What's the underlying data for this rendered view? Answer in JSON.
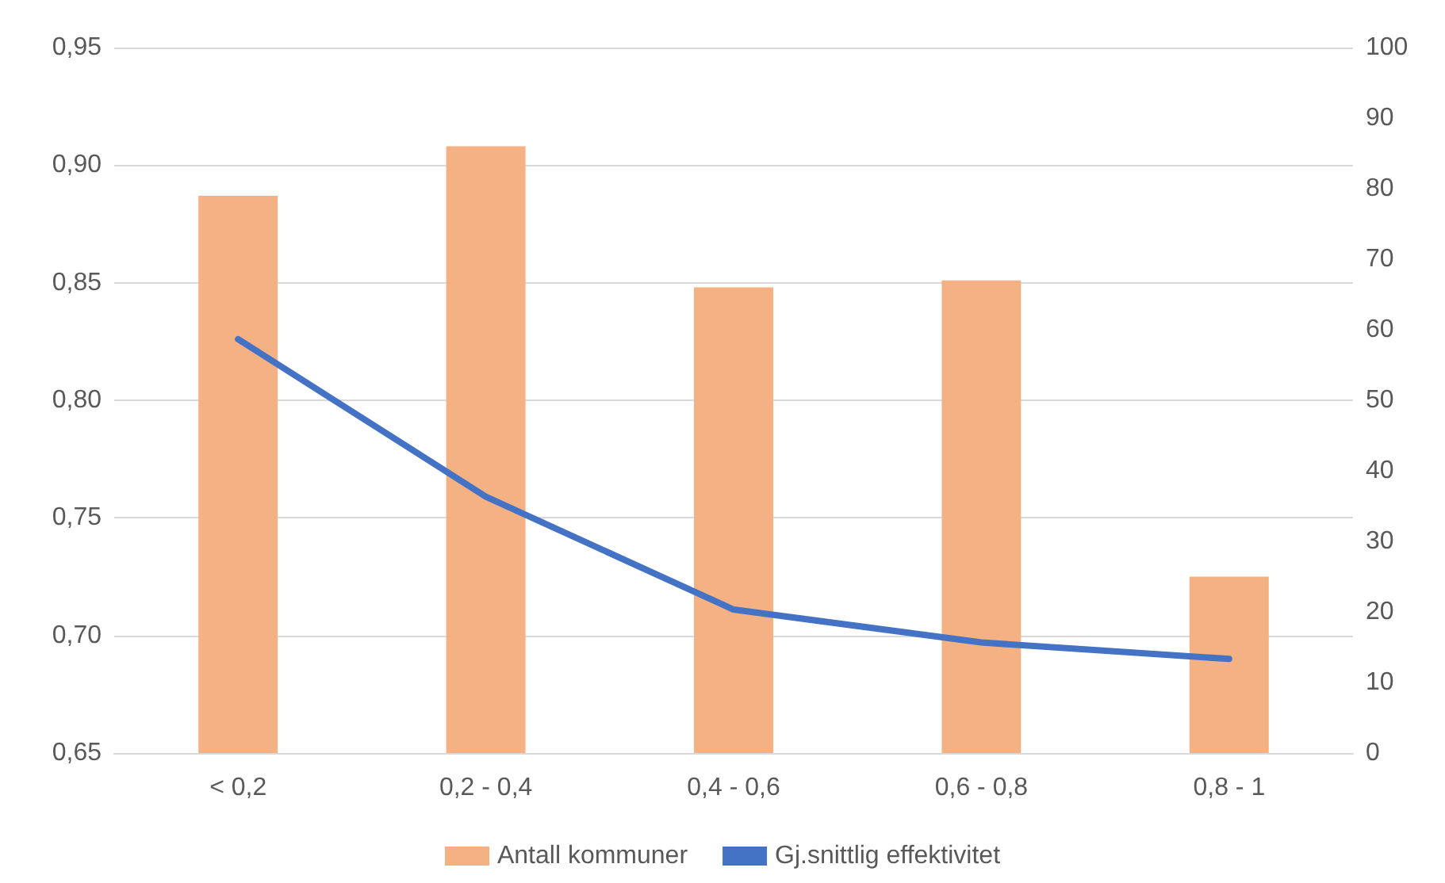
{
  "chart_data": {
    "type": "bar",
    "categories": [
      "< 0,2",
      "0,2 - 0,4",
      "0,4 - 0,6",
      "0,6 - 0,8",
      "0,8 - 1"
    ],
    "series": [
      {
        "name": "Antall kommuner",
        "axis": "y2",
        "color": "#f4b183",
        "values": [
          79,
          86,
          66,
          67,
          25
        ]
      },
      {
        "name": "Gj.snittlig effektivitet",
        "type": "line",
        "axis": "y",
        "color": "#4472c4",
        "values": [
          0.826,
          0.759,
          0.711,
          0.697,
          0.69
        ]
      }
    ],
    "ylim": [
      0.65,
      0.95
    ],
    "yticks": [
      {
        "value": 0.65,
        "label": "0,65"
      },
      {
        "value": 0.7,
        "label": "0,70"
      },
      {
        "value": 0.75,
        "label": "0,75"
      },
      {
        "value": 0.8,
        "label": "0,80"
      },
      {
        "value": 0.85,
        "label": "0,85"
      },
      {
        "value": 0.9,
        "label": "0,90"
      },
      {
        "value": 0.95,
        "label": "0,95"
      }
    ],
    "y2lim": [
      0,
      100
    ],
    "y2ticks": [
      0,
      10,
      20,
      30,
      40,
      50,
      60,
      70,
      80,
      90,
      100
    ],
    "grid": "y",
    "legend": "bottom",
    "marker": "none",
    "line_style": "solid"
  }
}
